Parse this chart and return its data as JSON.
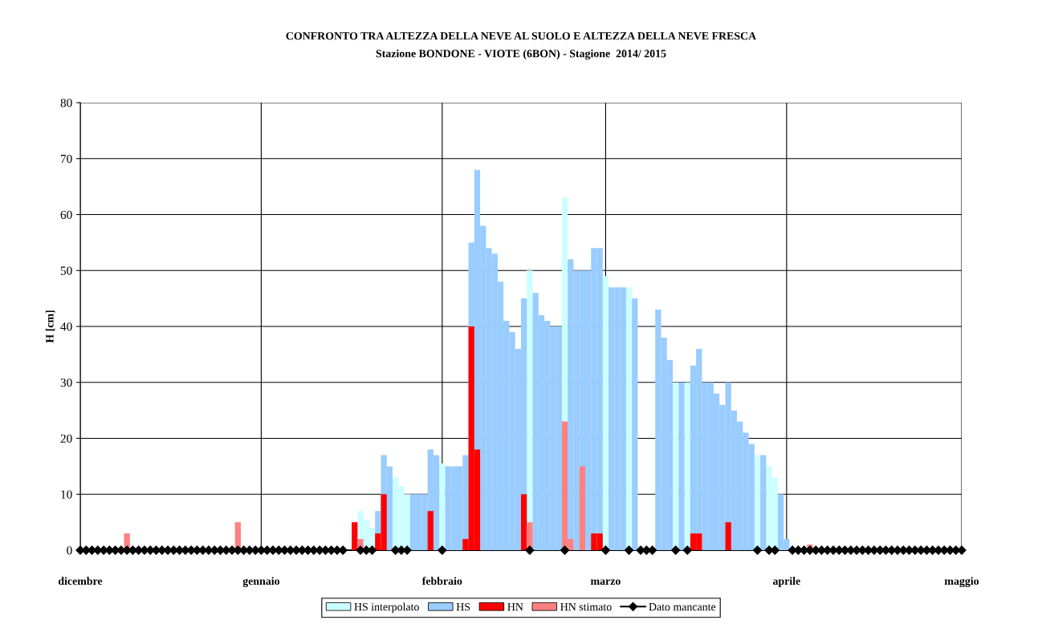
{
  "chart_data": {
    "type": "bar",
    "title": "CONFRONTO TRA ALTEZZA DELLA NEVE AL SUOLO E ALTEZZA DELLA NEVE FRESCA",
    "subtitle": "Stazione BONDONE - VIOTE (6BON) - Stagione  2014/ 2015",
    "ylabel": "H [cm]",
    "xlim": [
      "2014-12-01",
      "2015-05-01"
    ],
    "xticks": [
      {
        "value": "2014-12-01",
        "label": "dicembre"
      },
      {
        "value": "2015-01-01",
        "label": "gennaio"
      },
      {
        "value": "2015-02-01",
        "label": "febbraio"
      },
      {
        "value": "2015-03-01",
        "label": "marzo"
      },
      {
        "value": "2015-04-01",
        "label": "aprile"
      },
      {
        "value": "2015-05-01",
        "label": "maggio"
      }
    ],
    "ylim": [
      0,
      80
    ],
    "yticks": [
      0,
      10,
      20,
      30,
      40,
      50,
      60,
      70,
      80
    ],
    "grid": true,
    "legend": "bottom",
    "series": [
      {
        "name": "HS interpolato",
        "color": "#ccffff",
        "x": [
          "2015-01-18",
          "2015-01-19",
          "2015-01-20",
          "2015-01-24",
          "2015-01-25",
          "2015-01-26",
          "2015-02-01",
          "2015-02-16",
          "2015-02-22",
          "2015-03-01",
          "2015-03-05",
          "2015-03-13",
          "2015-03-15",
          "2015-03-27",
          "2015-03-29",
          "2015-03-30"
        ],
        "values": [
          7,
          5.5,
          4,
          13,
          11.5,
          10,
          15.5,
          50,
          63,
          49,
          47,
          30,
          30,
          17,
          15,
          13
        ]
      },
      {
        "name": "HS",
        "color": "#99ccff",
        "x": [
          "2015-01-21",
          "2015-01-22",
          "2015-01-23",
          "2015-01-27",
          "2015-01-28",
          "2015-01-29",
          "2015-01-30",
          "2015-01-31",
          "2015-02-02",
          "2015-02-03",
          "2015-02-04",
          "2015-02-05",
          "2015-02-06",
          "2015-02-07",
          "2015-02-08",
          "2015-02-09",
          "2015-02-10",
          "2015-02-11",
          "2015-02-12",
          "2015-02-13",
          "2015-02-14",
          "2015-02-15",
          "2015-02-17",
          "2015-02-18",
          "2015-02-19",
          "2015-02-20",
          "2015-02-21",
          "2015-02-23",
          "2015-02-24",
          "2015-02-25",
          "2015-02-26",
          "2015-02-27",
          "2015-02-28",
          "2015-03-02",
          "2015-03-03",
          "2015-03-04",
          "2015-03-06",
          "2015-03-10",
          "2015-03-11",
          "2015-03-12",
          "2015-03-14",
          "2015-03-16",
          "2015-03-17",
          "2015-03-18",
          "2015-03-19",
          "2015-03-20",
          "2015-03-21",
          "2015-03-22",
          "2015-03-23",
          "2015-03-24",
          "2015-03-25",
          "2015-03-26",
          "2015-03-28",
          "2015-03-31",
          "2015-04-01"
        ],
        "values": [
          7,
          17,
          15,
          10,
          10,
          10,
          18,
          17,
          15,
          15,
          15,
          17,
          55,
          68,
          58,
          54,
          53,
          48,
          41,
          39,
          36,
          45,
          46,
          42,
          41,
          40,
          40,
          52,
          50,
          50,
          50,
          54,
          54,
          47,
          47,
          47,
          45,
          43,
          38,
          34,
          30,
          33,
          36,
          30,
          30,
          28,
          26,
          30,
          25,
          23,
          21,
          19,
          17,
          10,
          2
        ]
      },
      {
        "name": "HN",
        "color": "#ff0000",
        "x": [
          "2015-01-17",
          "2015-01-21",
          "2015-01-22",
          "2015-01-30",
          "2015-02-05",
          "2015-02-06",
          "2015-02-07",
          "2015-02-15",
          "2015-02-27",
          "2015-02-28",
          "2015-03-16",
          "2015-03-17",
          "2015-03-22"
        ],
        "values": [
          5,
          3,
          10,
          7,
          2,
          40,
          18,
          10,
          3,
          3,
          3,
          3,
          5
        ]
      },
      {
        "name": "HN stimato",
        "color": "#ff8080",
        "x": [
          "2014-12-09",
          "2014-12-28",
          "2015-01-18",
          "2015-02-16",
          "2015-02-22",
          "2015-02-23",
          "2015-02-25",
          "2015-04-05"
        ],
        "values": [
          3,
          5,
          2,
          5,
          23,
          2,
          15,
          1
        ]
      },
      {
        "name": "Dato mancante",
        "type": "line",
        "color": "#000000",
        "marker": "diamond",
        "line_style": "solid",
        "x": [
          "2014-12-01",
          "2014-12-02",
          "2014-12-03",
          "2014-12-04",
          "2014-12-05",
          "2014-12-06",
          "2014-12-07",
          "2014-12-08",
          "2014-12-09",
          "2014-12-10",
          "2014-12-11",
          "2014-12-12",
          "2014-12-13",
          "2014-12-14",
          "2014-12-15",
          "2014-12-16",
          "2014-12-17",
          "2014-12-18",
          "2014-12-19",
          "2014-12-20",
          "2014-12-21",
          "2014-12-22",
          "2014-12-23",
          "2014-12-24",
          "2014-12-25",
          "2014-12-26",
          "2014-12-27",
          "2014-12-28",
          "2014-12-29",
          "2014-12-30",
          "2014-12-31",
          "2015-01-01",
          "2015-01-02",
          "2015-01-03",
          "2015-01-04",
          "2015-01-05",
          "2015-01-06",
          "2015-01-07",
          "2015-01-08",
          "2015-01-09",
          "2015-01-10",
          "2015-01-11",
          "2015-01-12",
          "2015-01-13",
          "2015-01-14",
          "2015-01-15",
          "2015-01-18",
          "2015-01-19",
          "2015-01-20",
          "2015-01-24",
          "2015-01-25",
          "2015-01-26",
          "2015-02-01",
          "2015-02-16",
          "2015-02-22",
          "2015-03-01",
          "2015-03-05",
          "2015-03-07",
          "2015-03-08",
          "2015-03-09",
          "2015-03-13",
          "2015-03-15",
          "2015-03-27",
          "2015-03-29",
          "2015-03-30",
          "2015-04-02",
          "2015-04-03",
          "2015-04-04",
          "2015-04-05",
          "2015-04-06",
          "2015-04-07",
          "2015-04-08",
          "2015-04-09",
          "2015-04-10",
          "2015-04-11",
          "2015-04-12",
          "2015-04-13",
          "2015-04-14",
          "2015-04-15",
          "2015-04-16",
          "2015-04-17",
          "2015-04-18",
          "2015-04-19",
          "2015-04-20",
          "2015-04-21",
          "2015-04-22",
          "2015-04-23",
          "2015-04-24",
          "2015-04-25",
          "2015-04-26",
          "2015-04-27",
          "2015-04-28",
          "2015-04-29",
          "2015-04-30",
          "2015-05-01"
        ],
        "values": [
          0,
          0,
          0,
          0,
          0,
          0,
          0,
          0,
          0,
          0,
          0,
          0,
          0,
          0,
          0,
          0,
          0,
          0,
          0,
          0,
          0,
          0,
          0,
          0,
          0,
          0,
          0,
          0,
          0,
          0,
          0,
          0,
          0,
          0,
          0,
          0,
          0,
          0,
          0,
          0,
          0,
          0,
          0,
          0,
          0,
          0,
          0,
          0,
          0,
          0,
          0,
          0,
          0,
          0,
          0,
          0,
          0,
          0,
          0,
          0,
          0,
          0,
          0,
          0,
          0,
          0,
          0,
          0,
          0,
          0,
          0,
          0,
          0,
          0,
          0,
          0,
          0,
          0,
          0,
          0,
          0,
          0,
          0,
          0,
          0,
          0,
          0,
          0,
          0,
          0,
          0,
          0,
          0,
          0,
          0
        ]
      }
    ]
  }
}
